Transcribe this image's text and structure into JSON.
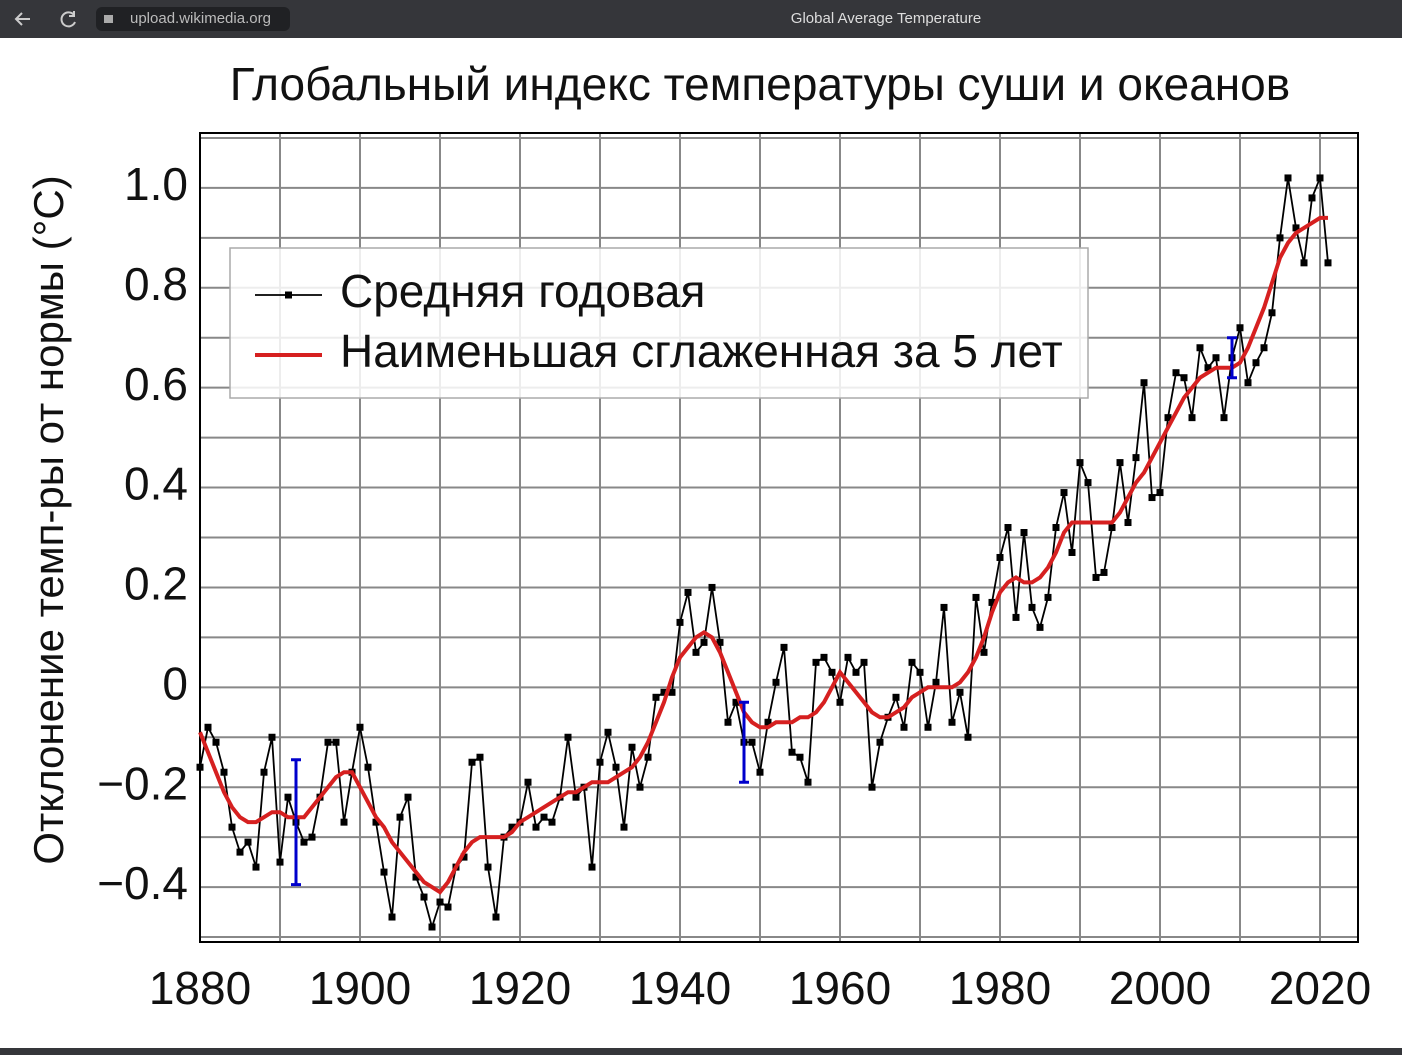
{
  "browser": {
    "url": "upload.wikimedia.org",
    "tab_title": "Global Average Temperature"
  },
  "chart_data": {
    "type": "line",
    "title": "Глобальный индекс температуры суши и океанов",
    "y_label": "Отклонение темп-ры от нормы (°C)",
    "xlim": [
      1880,
      2024.75
    ],
    "ylim": [
      -0.51,
      1.11
    ],
    "xticks": [
      1880,
      1900,
      1920,
      1940,
      1960,
      1980,
      2000,
      2020
    ],
    "xminor": [
      1890,
      1910,
      1930,
      1950,
      1970,
      1990,
      2010
    ],
    "yticks": [
      {
        "value": -0.4,
        "label": "−0.4"
      },
      {
        "value": -0.2,
        "label": "−0.2"
      },
      0,
      0.2,
      0.4,
      0.6,
      0.8,
      {
        "value": 1,
        "label": "1.0"
      }
    ],
    "yminor": [
      -0.5,
      -0.3,
      -0.1,
      0.1,
      0.3,
      0.5,
      0.7,
      0.9,
      1.1
    ],
    "grid": true,
    "legend": "upper left",
    "x": [
      1880,
      1881,
      1882,
      1883,
      1884,
      1885,
      1886,
      1887,
      1888,
      1889,
      1890,
      1891,
      1892,
      1893,
      1894,
      1895,
      1896,
      1897,
      1898,
      1899,
      1900,
      1901,
      1902,
      1903,
      1904,
      1905,
      1906,
      1907,
      1908,
      1909,
      1910,
      1911,
      1912,
      1913,
      1914,
      1915,
      1916,
      1917,
      1918,
      1919,
      1920,
      1921,
      1922,
      1923,
      1924,
      1925,
      1926,
      1927,
      1928,
      1929,
      1930,
      1931,
      1932,
      1933,
      1934,
      1935,
      1936,
      1937,
      1938,
      1939,
      1940,
      1941,
      1942,
      1943,
      1944,
      1945,
      1946,
      1947,
      1948,
      1949,
      1950,
      1951,
      1952,
      1953,
      1954,
      1955,
      1956,
      1957,
      1958,
      1959,
      1960,
      1961,
      1962,
      1963,
      1964,
      1965,
      1966,
      1967,
      1968,
      1969,
      1970,
      1971,
      1972,
      1973,
      1974,
      1975,
      1976,
      1977,
      1978,
      1979,
      1980,
      1981,
      1982,
      1983,
      1984,
      1985,
      1986,
      1987,
      1988,
      1989,
      1990,
      1991,
      1992,
      1993,
      1994,
      1995,
      1996,
      1997,
      1998,
      1999,
      2000,
      2001,
      2002,
      2003,
      2004,
      2005,
      2006,
      2007,
      2008,
      2009,
      2010,
      2011,
      2012,
      2013,
      2014,
      2015,
      2016,
      2017,
      2018,
      2019,
      2020,
      2021
    ],
    "series": [
      {
        "name": "Средняя годовая",
        "color": "#000000",
        "markers": true,
        "values": [
          -0.16,
          -0.08,
          -0.11,
          -0.17,
          -0.28,
          -0.33,
          -0.31,
          -0.36,
          -0.17,
          -0.1,
          -0.35,
          -0.22,
          -0.27,
          -0.31,
          -0.3,
          -0.22,
          -0.11,
          -0.11,
          -0.27,
          -0.17,
          -0.08,
          -0.16,
          -0.27,
          -0.37,
          -0.46,
          -0.26,
          -0.22,
          -0.38,
          -0.42,
          -0.48,
          -0.43,
          -0.44,
          -0.36,
          -0.34,
          -0.15,
          -0.14,
          -0.36,
          -0.46,
          -0.3,
          -0.28,
          -0.27,
          -0.19,
          -0.28,
          -0.26,
          -0.27,
          -0.22,
          -0.1,
          -0.22,
          -0.2,
          -0.36,
          -0.15,
          -0.09,
          -0.16,
          -0.28,
          -0.12,
          -0.2,
          -0.14,
          -0.02,
          -0.01,
          -0.01,
          0.13,
          0.19,
          0.07,
          0.09,
          0.2,
          0.09,
          -0.07,
          -0.03,
          -0.11,
          -0.11,
          -0.17,
          -0.07,
          0.01,
          0.08,
          -0.13,
          -0.14,
          -0.19,
          0.05,
          0.06,
          0.03,
          -0.03,
          0.06,
          0.03,
          0.05,
          -0.2,
          -0.11,
          -0.06,
          -0.02,
          -0.08,
          0.05,
          0.03,
          -0.08,
          0.01,
          0.16,
          -0.07,
          -0.01,
          -0.1,
          0.18,
          0.07,
          0.17,
          0.26,
          0.32,
          0.14,
          0.31,
          0.16,
          0.12,
          0.18,
          0.32,
          0.39,
          0.27,
          0.45,
          0.41,
          0.22,
          0.23,
          0.32,
          0.45,
          0.33,
          0.46,
          0.61,
          0.38,
          0.39,
          0.54,
          0.63,
          0.62,
          0.54,
          0.68,
          0.64,
          0.66,
          0.54,
          0.66,
          0.72,
          0.61,
          0.65,
          0.68,
          0.75,
          0.9,
          1.02,
          0.92,
          0.85,
          0.98,
          1.02,
          0.85
        ]
      },
      {
        "name": "Наименьшая сглаженная за 5 лет",
        "color": "#d62020",
        "markers": false,
        "values": [
          -0.09,
          -0.13,
          -0.17,
          -0.21,
          -0.24,
          -0.26,
          -0.27,
          -0.27,
          -0.26,
          -0.25,
          -0.25,
          -0.26,
          -0.26,
          -0.26,
          -0.24,
          -0.22,
          -0.2,
          -0.18,
          -0.17,
          -0.17,
          -0.2,
          -0.23,
          -0.26,
          -0.28,
          -0.31,
          -0.33,
          -0.35,
          -0.37,
          -0.39,
          -0.4,
          -0.41,
          -0.39,
          -0.36,
          -0.33,
          -0.31,
          -0.3,
          -0.3,
          -0.3,
          -0.3,
          -0.29,
          -0.27,
          -0.26,
          -0.25,
          -0.24,
          -0.23,
          -0.22,
          -0.21,
          -0.21,
          -0.2,
          -0.19,
          -0.19,
          -0.19,
          -0.18,
          -0.17,
          -0.16,
          -0.14,
          -0.11,
          -0.07,
          -0.03,
          0.02,
          0.06,
          0.08,
          0.1,
          0.11,
          0.1,
          0.07,
          0.03,
          -0.01,
          -0.05,
          -0.07,
          -0.08,
          -0.08,
          -0.07,
          -0.07,
          -0.07,
          -0.06,
          -0.06,
          -0.05,
          -0.03,
          0.0,
          0.03,
          0.01,
          -0.01,
          -0.03,
          -0.05,
          -0.06,
          -0.06,
          -0.05,
          -0.04,
          -0.02,
          -0.01,
          0.0,
          0.0,
          0.0,
          0.0,
          0.01,
          0.03,
          0.06,
          0.1,
          0.15,
          0.19,
          0.21,
          0.22,
          0.21,
          0.21,
          0.22,
          0.24,
          0.27,
          0.31,
          0.33,
          0.33,
          0.33,
          0.33,
          0.33,
          0.33,
          0.35,
          0.38,
          0.41,
          0.43,
          0.46,
          0.49,
          0.52,
          0.55,
          0.58,
          0.6,
          0.62,
          0.63,
          0.64,
          0.64,
          0.64,
          0.65,
          0.68,
          0.72,
          0.76,
          0.81,
          0.86,
          0.89,
          0.91,
          0.92,
          0.93,
          0.94,
          0.94
        ]
      }
    ],
    "error_bars": {
      "color": "#0000cc",
      "x": [
        1892,
        1948,
        2009
      ],
      "values": [
        -0.27,
        -0.11,
        0.66
      ],
      "errors": [
        0.125,
        0.08,
        0.04
      ]
    }
  }
}
